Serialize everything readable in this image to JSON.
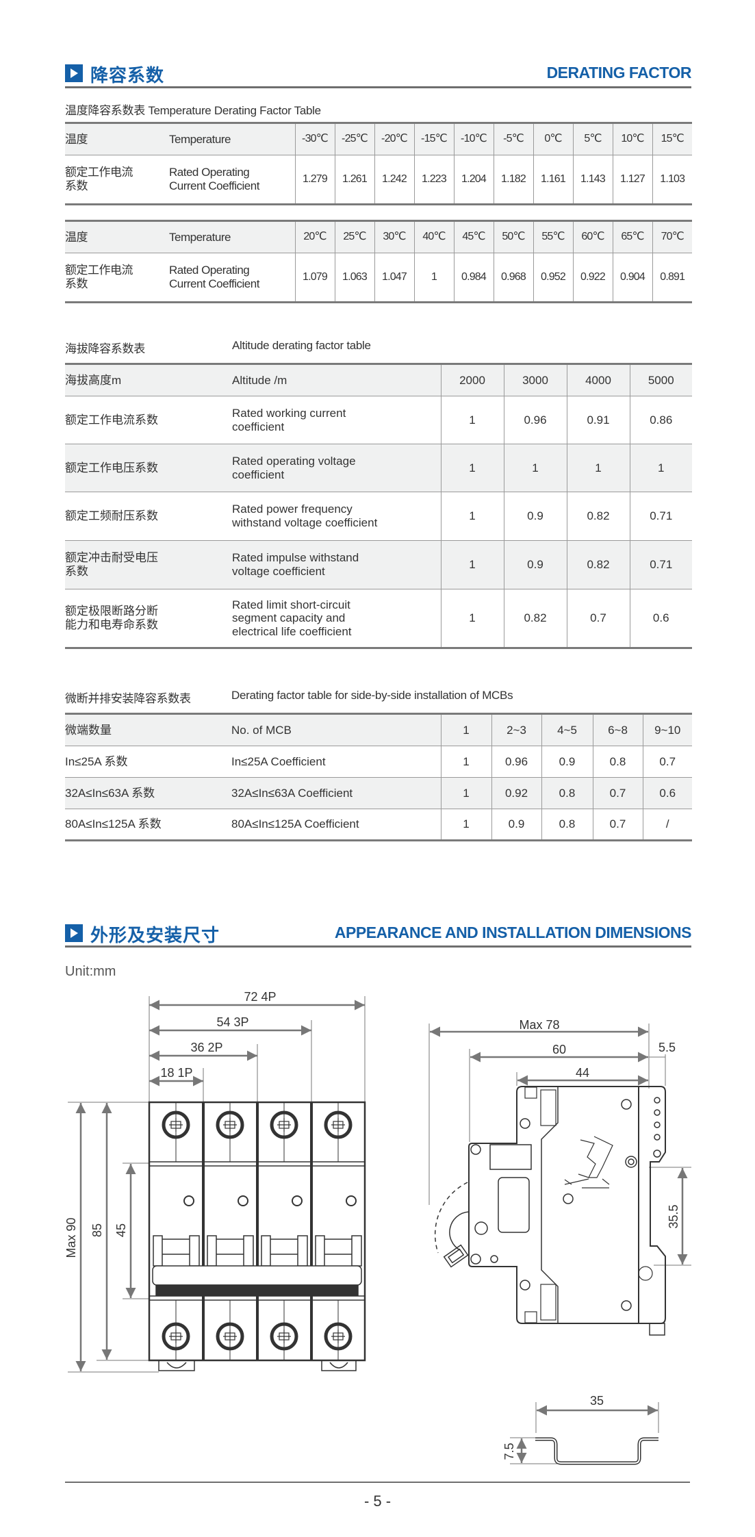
{
  "section1": {
    "title_cn": "降容系数",
    "title_en": "DERATING FACTOR"
  },
  "temperature_table": {
    "caption": "温度降容系数表 Temperature Derating Factor Table",
    "parts": [
      {
        "header": {
          "cn": "温度",
          "en": "Temperature",
          "values": [
            "-30℃",
            "-25℃",
            "-20℃",
            "-15℃",
            "-10℃",
            "-5℃",
            "0℃",
            "5℃",
            "10℃",
            "15℃"
          ]
        },
        "row": {
          "cn": "额定工作电流\n系数",
          "en": "Rated Operating\nCurrent Coefficient",
          "values": [
            "1.279",
            "1.261",
            "1.242",
            "1.223",
            "1.204",
            "1.182",
            "1.161",
            "1.143",
            "1.127",
            "1.103"
          ]
        }
      },
      {
        "header": {
          "cn": "温度",
          "en": "Temperature",
          "values": [
            "20℃",
            "25℃",
            "30℃",
            "40℃",
            "45℃",
            "50℃",
            "55℃",
            "60℃",
            "65℃",
            "70℃"
          ]
        },
        "row": {
          "cn": "额定工作电流\n系数",
          "en": "Rated Operating\nCurrent Coefficient",
          "values": [
            "1.079",
            "1.063",
            "1.047",
            "1",
            "0.984",
            "0.968",
            "0.952",
            "0.922",
            "0.904",
            "0.891"
          ]
        }
      }
    ]
  },
  "altitude_table": {
    "caption_cn": "海拔降容系数表",
    "caption_en": "Altitude derating factor table",
    "header": {
      "cn": "海拔高度m",
      "en": "Altitude /m",
      "values": [
        "2000",
        "3000",
        "4000",
        "5000"
      ]
    },
    "rows": [
      {
        "cn": "额定工作电流系数",
        "en": "Rated working current\ncoefficient",
        "values": [
          "1",
          "0.96",
          "0.91",
          "0.86"
        ]
      },
      {
        "cn": "额定工作电压系数",
        "en": "Rated operating voltage\ncoefficient",
        "values": [
          "1",
          "1",
          "1",
          "1"
        ]
      },
      {
        "cn": "额定工频耐压系数",
        "en": "Rated power frequency\nwithstand voltage coefficient",
        "values": [
          "1",
          "0.9",
          "0.82",
          "0.71"
        ]
      },
      {
        "cn": "额定冲击耐受电压\n系数",
        "en": "Rated impulse withstand\nvoltage coefficient",
        "values": [
          "1",
          "0.9",
          "0.82",
          "0.71"
        ]
      },
      {
        "cn": "额定极限断路分断\n能力和电寿命系数",
        "en": "Rated limit short-circuit\nsegment capacity and\nelectrical life coefficient",
        "values": [
          "1",
          "0.82",
          "0.7",
          "0.6"
        ]
      }
    ]
  },
  "mcb_table": {
    "caption_cn": "微断并排安装降容系数表",
    "caption_en": "Derating factor table for side-by-side installation of MCBs",
    "header": {
      "cn": "微端数量",
      "en": "No. of MCB",
      "values": [
        "1",
        "2~3",
        "4~5",
        "6~8",
        "9~10"
      ]
    },
    "rows": [
      {
        "cn": "In≤25A 系数",
        "en": "In≤25A Coefficient",
        "values": [
          "1",
          "0.96",
          "0.9",
          "0.8",
          "0.7"
        ]
      },
      {
        "cn": "32A≤In≤63A 系数",
        "en": "32A≤In≤63A Coefficient",
        "values": [
          "1",
          "0.92",
          "0.8",
          "0.7",
          "0.6"
        ]
      },
      {
        "cn": "80A≤In≤125A 系数",
        "en": "80A≤In≤125A Coefficient",
        "values": [
          "1",
          "0.9",
          "0.8",
          "0.7",
          "/"
        ]
      }
    ]
  },
  "section2": {
    "title_cn": "外形及安装尺寸",
    "title_en": "APPEARANCE AND INSTALLATION DIMENSIONS",
    "unit": "Unit:mm"
  },
  "front_view": {
    "width_dims": [
      "72  4P",
      "54  3P",
      "36  2P",
      "18  1P"
    ],
    "height_dims": [
      "Max 90",
      "85",
      "45"
    ]
  },
  "side_view": {
    "dims": {
      "max_depth": "Max 78",
      "depth": "60",
      "front_depth": "44",
      "clip": "5.5",
      "rail_gap": "35.5"
    }
  },
  "din_rail": {
    "width": "35",
    "height": "7.5"
  },
  "footer": {
    "page": "- 5 -"
  },
  "colors": {
    "accent": "#1560a8",
    "header_row": "#f0f1f1",
    "rule": "#6e6e6e"
  }
}
